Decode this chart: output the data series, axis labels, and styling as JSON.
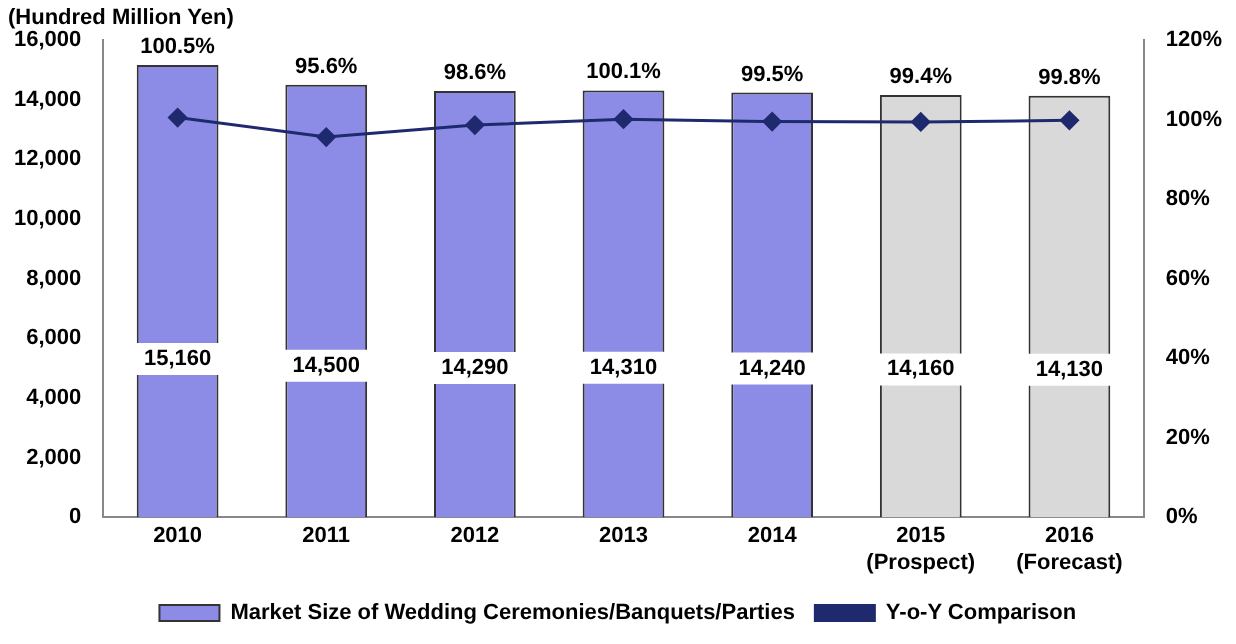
{
  "chart_data": {
    "type": "bar",
    "ylabel": "(Hundred Million Yen)",
    "categories": [
      "2010",
      "2011",
      "2012",
      "2013",
      "2014",
      "2015\n(Prospect)",
      "2016\n(Forecast)"
    ],
    "series": [
      {
        "name": "Market Size of Wedding Ceremonies/Banquets/Parties",
        "color": "#8c8ce6",
        "colors": [
          "#8c8ce6",
          "#8c8ce6",
          "#8c8ce6",
          "#8c8ce6",
          "#8c8ce6",
          "#d9d9d9",
          "#d9d9d9"
        ],
        "values": [
          15160,
          14500,
          14290,
          14310,
          14240,
          14160,
          14130
        ],
        "value_labels": [
          "15,160",
          "14,500",
          "14,290",
          "14,310",
          "14,240",
          "14,160",
          "14,130"
        ]
      },
      {
        "name": "Y-o-Y Comparison",
        "type": "line",
        "axis": "y2",
        "color": "#1f2a6e",
        "values": [
          100.5,
          95.6,
          98.6,
          100.1,
          99.5,
          99.4,
          99.8
        ],
        "value_labels": [
          "100.5%",
          "95.6%",
          "98.6%",
          "100.1%",
          "99.5%",
          "99.4%",
          "99.8%"
        ]
      }
    ],
    "ylim": [
      0,
      16000
    ],
    "yticks": [
      0,
      {
        "value": 2000,
        "label": "2,000"
      },
      {
        "value": 4000,
        "label": "4,000"
      },
      {
        "value": 6000,
        "label": "6,000"
      },
      {
        "value": 8000,
        "label": "8,000"
      },
      {
        "value": 10000,
        "label": "10,000"
      },
      {
        "value": 12000,
        "label": "12,000"
      },
      {
        "value": 14000,
        "label": "14,000"
      },
      {
        "value": 16000,
        "label": "16,000"
      }
    ],
    "y2lim": [
      0,
      120
    ],
    "y2ticks": [
      {
        "value": 0,
        "label": "0%"
      },
      {
        "value": 20,
        "label": "20%"
      },
      {
        "value": 40,
        "label": "40%"
      },
      {
        "value": 60,
        "label": "60%"
      },
      {
        "value": 80,
        "label": "80%"
      },
      {
        "value": 100,
        "label": "100%"
      },
      {
        "value": 120,
        "label": "120%"
      }
    ],
    "grid": false,
    "legend": "bottom",
    "marker": "diamond",
    "line_style": "solid"
  }
}
